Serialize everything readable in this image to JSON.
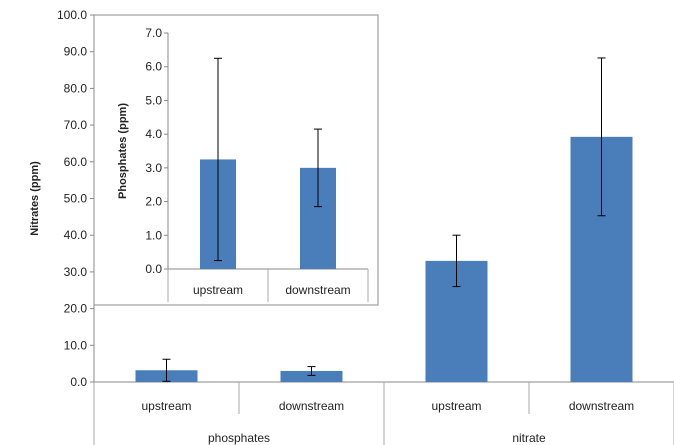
{
  "chart_data": [
    {
      "type": "bar",
      "categories": [
        "upstream",
        "downstream",
        "upstream",
        "downstream"
      ],
      "groups": [
        {
          "label": "phosphates",
          "categories": [
            "upstream",
            "downstream"
          ]
        },
        {
          "label": "nitrate",
          "categories": [
            "upstream",
            "downstream"
          ]
        }
      ],
      "series": [
        {
          "values": [
            3.2,
            3.0,
            33.0,
            66.8
          ],
          "error": [
            3.0,
            1.2,
            7.0,
            21.5
          ]
        }
      ],
      "ylabel": "Nitrates (ppm)",
      "xlabel": "",
      "ylim": [
        0,
        100
      ],
      "yticks": [
        "0.0",
        "10.0",
        "20.0",
        "30.0",
        "40.0",
        "50.0",
        "60.0",
        "70.0",
        "80.0",
        "90.0",
        "100.0"
      ],
      "grid": false,
      "legend": "none",
      "bar_color": "#4a7ebb",
      "error_color": "#000000"
    },
    {
      "type": "bar",
      "categories": [
        "upstream",
        "downstream"
      ],
      "series": [
        {
          "values": [
            3.25,
            3.0
          ],
          "error": [
            3.0,
            1.15
          ]
        }
      ],
      "ylabel": "Phosphates (ppm)",
      "xlabel": "",
      "ylim": [
        0,
        7
      ],
      "yticks": [
        "0.0",
        "1.0",
        "2.0",
        "3.0",
        "4.0",
        "5.0",
        "6.0",
        "7.0"
      ],
      "grid": false,
      "legend": "none",
      "bar_color": "#4a7ebb",
      "error_color": "#000000"
    }
  ]
}
